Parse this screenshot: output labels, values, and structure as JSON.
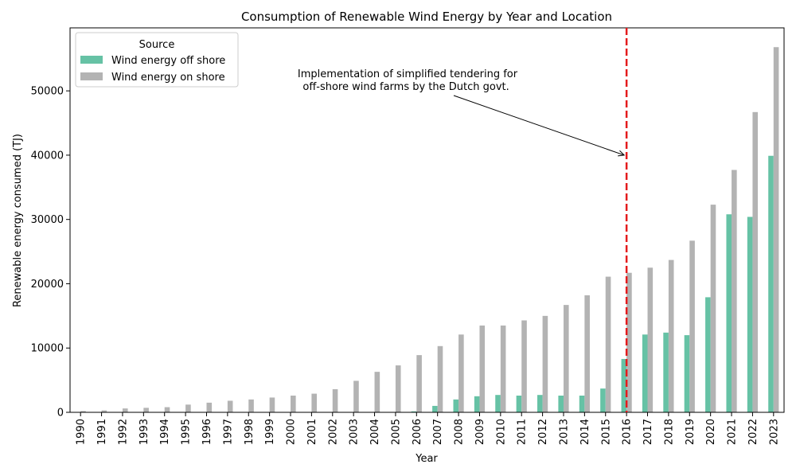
{
  "chart_data": {
    "type": "bar",
    "title": "Consumption of Renewable Wind Energy by Year and Location",
    "xlabel": "Year",
    "ylabel": "Renewable energy consumed (TJ)",
    "ylim": [
      0,
      59800
    ],
    "yticks": [
      0,
      10000,
      20000,
      30000,
      40000,
      50000
    ],
    "grid": false,
    "categories": [
      "1990",
      "1991",
      "1992",
      "1993",
      "1994",
      "1995",
      "1996",
      "1997",
      "1998",
      "1999",
      "2000",
      "2001",
      "2002",
      "2003",
      "2004",
      "2005",
      "2006",
      "2007",
      "2008",
      "2009",
      "2010",
      "2011",
      "2012",
      "2013",
      "2014",
      "2015",
      "2016",
      "2017",
      "2018",
      "2019",
      "2020",
      "2021",
      "2022",
      "2023"
    ],
    "series": [
      {
        "name": "Wind energy off shore",
        "color": "#66c2a5",
        "values": [
          0,
          0,
          0,
          0,
          0,
          0,
          0,
          0,
          0,
          0,
          0,
          0,
          0,
          0,
          0,
          0,
          150,
          1000,
          2000,
          2500,
          2700,
          2600,
          2700,
          2600,
          2600,
          3700,
          8300,
          12100,
          12400,
          12000,
          17900,
          30800,
          30400,
          39900
        ]
      },
      {
        "name": "Wind energy on shore",
        "color": "#b3b3b3",
        "values": [
          200,
          300,
          600,
          700,
          800,
          1200,
          1500,
          1800,
          2000,
          2300,
          2600,
          2900,
          3600,
          4900,
          6300,
          7300,
          8900,
          10300,
          12100,
          13500,
          13500,
          14300,
          15000,
          16700,
          18200,
          21100,
          21700,
          22500,
          23700,
          26700,
          32300,
          37700,
          46700,
          56800
        ]
      }
    ],
    "legend": {
      "title": "Source",
      "placement": "upper-left"
    },
    "vline": {
      "year": "2016",
      "color": "#e41a1c",
      "style": "dashed"
    },
    "annotation": {
      "lines": [
        "Implementation of simplified tendering for",
        " off-shore wind farms by the Dutch govt."
      ],
      "arrow_to": {
        "year": "2016",
        "value": 40000
      }
    }
  }
}
